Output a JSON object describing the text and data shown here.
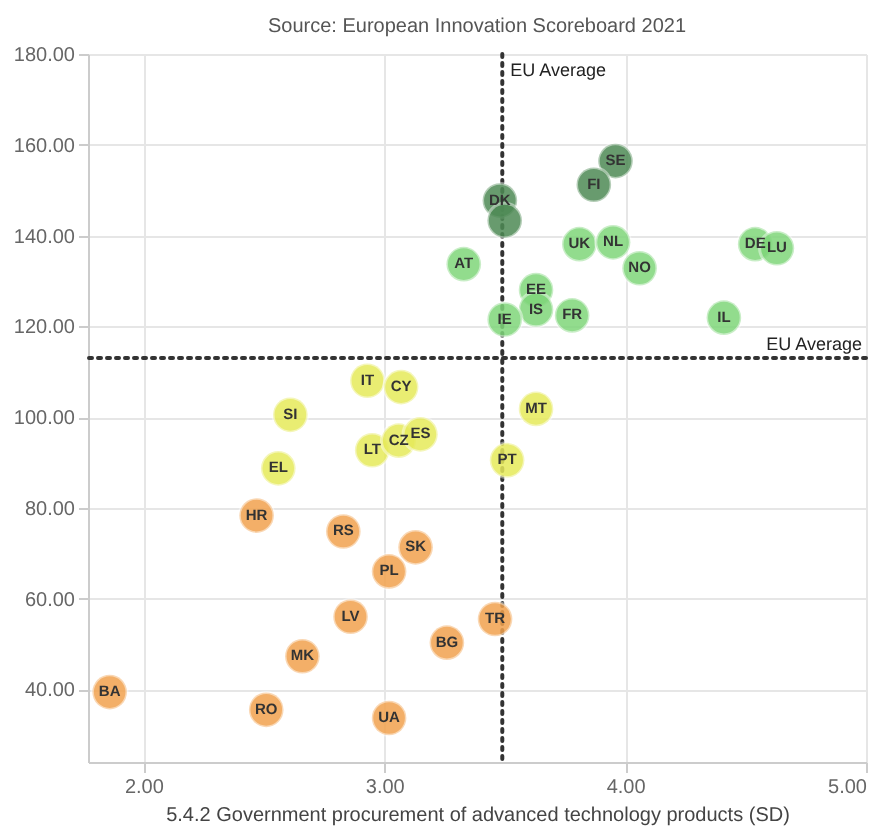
{
  "chart_data": {
    "type": "scatter",
    "title": "Source: European Innovation Scoreboard 2021",
    "xlabel": "5.4.2 Government procurement of advanced technology products (SD)",
    "xlim": [
      1.77,
      5.0
    ],
    "ylim": [
      24,
      180
    ],
    "xticks": [
      {
        "value": 2,
        "label": "2.00"
      },
      {
        "value": 3,
        "label": "3.00"
      },
      {
        "value": 4,
        "label": "4.00"
      },
      {
        "value": 5,
        "label": "5.00"
      }
    ],
    "yticks": [
      {
        "value": 40,
        "label": "40.00"
      },
      {
        "value": 60,
        "label": "60.00"
      },
      {
        "value": 80,
        "label": "80.00"
      },
      {
        "value": 100,
        "label": "100.00"
      },
      {
        "value": 120,
        "label": "120.00"
      },
      {
        "value": 140,
        "label": "140.00"
      },
      {
        "value": 160,
        "label": "160.00"
      },
      {
        "value": 180,
        "label": "180.00"
      }
    ],
    "grid": true,
    "marker": "circle",
    "ref_lines": [
      {
        "axis": "x",
        "value": 3.49,
        "label": "EU Average",
        "line_style": "dotted",
        "color": "#333333"
      },
      {
        "axis": "y",
        "value": 113,
        "label": "EU Average",
        "line_style": "dotted",
        "color": "#333333"
      }
    ],
    "series": [
      {
        "color": "#4e8a55",
        "x": [
          3.48,
          3.5,
          3.96,
          3.87
        ],
        "values": [
          147.7,
          143.3,
          156.4,
          151.2
        ],
        "value_labels": [
          "DK",
          null,
          "SE",
          "FI"
        ]
      },
      {
        "color": "#7fd67a",
        "x": [
          3.33,
          3.81,
          3.95,
          4.06,
          4.54,
          4.63,
          3.63,
          3.63,
          3.78,
          3.5,
          4.41
        ],
        "values": [
          133.7,
          138.1,
          138.5,
          132.8,
          138.1,
          137.2,
          128.0,
          123.7,
          122.4,
          121.5,
          121.9
        ],
        "value_labels": [
          "AT",
          "UK",
          "NL",
          "NO",
          "DE",
          "LU",
          "EE",
          "IS",
          "FR",
          "IE",
          "IL"
        ]
      },
      {
        "color": "#e6ea5a",
        "x": [
          2.93,
          3.07,
          2.61,
          2.56,
          2.95,
          3.06,
          3.15,
          3.63,
          3.51
        ],
        "values": [
          108,
          106.6,
          100.5,
          88.7,
          92.7,
          94.8,
          96.2,
          101.8,
          90.5
        ],
        "value_labels": [
          "IT",
          "CY",
          "SI",
          "EL",
          "LT",
          "CZ",
          "ES",
          "MT",
          "PT"
        ]
      },
      {
        "color": "#f2a24e",
        "x": [
          2.47,
          2.83,
          3.13,
          3.02,
          2.86,
          2.66,
          3.26,
          3.46,
          1.86,
          2.51,
          3.02
        ],
        "values": [
          78.3,
          74.8,
          71.3,
          66.0,
          56.0,
          47.3,
          50.3,
          55.5,
          39.4,
          35.5,
          33.7
        ],
        "value_labels": [
          "HR",
          "RS",
          "SK",
          "PL",
          "LV",
          "MK",
          "BG",
          "TR",
          "BA",
          "RO",
          "UA"
        ]
      }
    ]
  }
}
